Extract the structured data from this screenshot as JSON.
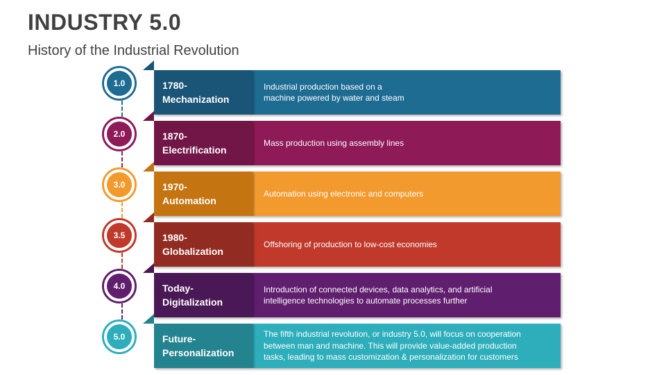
{
  "header": {
    "title": "INDUSTRY 5.0",
    "subtitle": "History of the Industrial Revolution"
  },
  "stages": [
    {
      "badge": "1.0",
      "period": "1780-",
      "name": "Mechanization",
      "description": "Industrial production based on a\nmachine powered by water and steam",
      "color": "#1f6c93",
      "dark": "#1a5577"
    },
    {
      "badge": "2.0",
      "period": "1870-",
      "name": "Electrification",
      "description": "Mass production using assembly lines",
      "color": "#8e1a57",
      "dark": "#711646"
    },
    {
      "badge": "3.0",
      "period": "1970-",
      "name": "Automation",
      "description": "Automation using electronic and computers",
      "color": "#f29a2e",
      "dark": "#c47512"
    },
    {
      "badge": "3.5",
      "period": "1980-",
      "name": "Globalization",
      "description": "Offshoring of production to low-cost economies",
      "color": "#c0392b",
      "dark": "#922b21"
    },
    {
      "badge": "4.0",
      "period": "Today-",
      "name": "Digitalization",
      "description": "Introduction of connected devices, data analytics, and artificial\nintelligence technologies to automate processes further",
      "color": "#5f1f6e",
      "dark": "#4a1856"
    },
    {
      "badge": "5.0",
      "period": "Future-",
      "name": "Personalization",
      "description": "The fifth industrial revolution, or industry 5.0, will focus on cooperation\nbetween man and machine. This will provide value-added production\ntasks, leading to mass customization & personalization for customers",
      "color": "#2eaebb",
      "dark": "#23848f"
    }
  ]
}
